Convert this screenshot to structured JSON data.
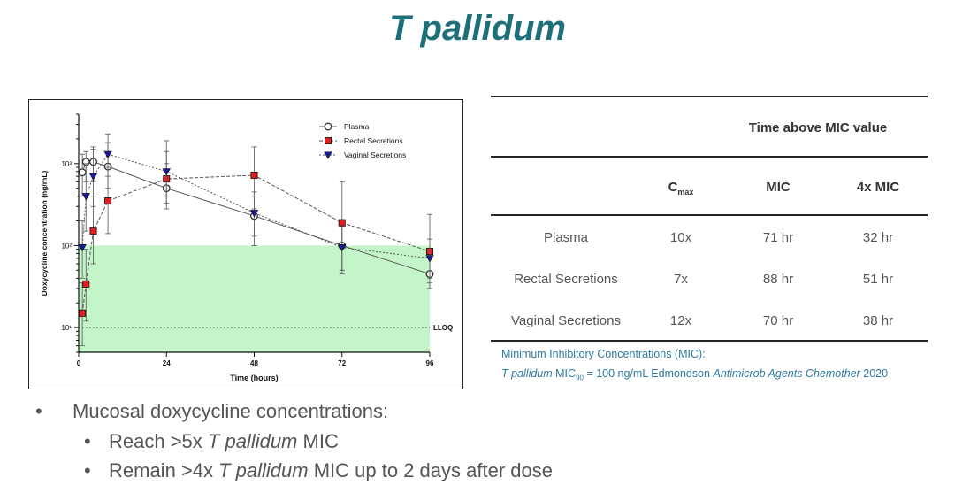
{
  "slide": {
    "title": "T pallidum"
  },
  "chart_data": {
    "type": "line",
    "xlabel": "Time (hours)",
    "ylabel": "Doxycycline concentration (ng/mL)",
    "yscale": "log",
    "xlim": [
      0,
      96
    ],
    "ylim": [
      5,
      4000
    ],
    "xticks": [
      0,
      24,
      48,
      72,
      96
    ],
    "yticks": [
      {
        "value": 10,
        "label": "10¹"
      },
      {
        "value": 100,
        "label": "10²"
      },
      {
        "value": 1000,
        "label": "10³"
      }
    ],
    "mic_band": {
      "from": 5,
      "to": 100,
      "color": "#c4f5c8"
    },
    "lloq": {
      "value": 10,
      "label": "LLOQ"
    },
    "legend_position": "top-right",
    "series": [
      {
        "name": "Plasma",
        "marker": "circle",
        "color": "#333333",
        "x": [
          1,
          2,
          4,
          8,
          24,
          48,
          72,
          96
        ],
        "y": [
          780,
          1050,
          1050,
          920,
          500,
          230,
          100,
          45
        ],
        "err_low": [
          400,
          600,
          600,
          500,
          330,
          130,
          50,
          30
        ],
        "err_high": [
          1300,
          1400,
          1600,
          1800,
          1000,
          400,
          170,
          75
        ]
      },
      {
        "name": "Rectal Secretions",
        "marker": "square",
        "color": "#e02020",
        "x": [
          1,
          2,
          4,
          8,
          24,
          48,
          72,
          96
        ],
        "y": [
          15,
          34,
          150,
          350,
          650,
          720,
          190,
          85
        ],
        "err_low": [
          6,
          12,
          60,
          140,
          280,
          280,
          45,
          35
        ],
        "err_high": [
          35,
          90,
          400,
          900,
          1400,
          1600,
          600,
          240
        ]
      },
      {
        "name": "Vaginal Secretions",
        "marker": "triangle-down",
        "color": "#1a1aa0",
        "x": [
          1,
          2,
          4,
          8,
          24,
          48,
          72,
          96
        ],
        "y": [
          95,
          400,
          700,
          1300,
          800,
          250,
          95,
          70
        ],
        "err_low": [
          40,
          150,
          300,
          700,
          400,
          100,
          50,
          40
        ],
        "err_high": [
          200,
          1000,
          1500,
          2300,
          1900,
          450,
          170,
          120
        ]
      }
    ]
  },
  "table": {
    "group_header": "Time above MIC value",
    "col_cmax": "C",
    "col_cmax_sub": "max",
    "col_mic": "MIC",
    "col_4xmic": "4x MIC",
    "rows": [
      {
        "label": "Plasma",
        "cmax": "10x",
        "mic": "71 hr",
        "mic4": "32 hr"
      },
      {
        "label": "Rectal Secretions",
        "cmax": "7x",
        "mic": "88 hr",
        "mic4": "51 hr"
      },
      {
        "label": "Vaginal Secretions",
        "cmax": "12x",
        "mic": "70 hr",
        "mic4": "38 hr"
      }
    ]
  },
  "notes": {
    "line1": "Minimum Inhibitory Concentrations (MIC):",
    "line2_italic": "T pallidum",
    "line2_mic": " MIC",
    "line2_sub": "90",
    "line2_mid": " = 100 ng/mL Edmondson ",
    "line2_journal": "Antimicrob Agents Chemother",
    "line2_year": " 2020"
  },
  "bullets": {
    "main": "Mucosal doxycycline concentrations:",
    "sub1_pre": "Reach >5x ",
    "sub1_italic": "T pallidum",
    "sub1_post": " MIC",
    "sub2_pre": "Remain >4x ",
    "sub2_italic": "T pallidum",
    "sub2_post": " MIC up to 2 days after dose"
  }
}
